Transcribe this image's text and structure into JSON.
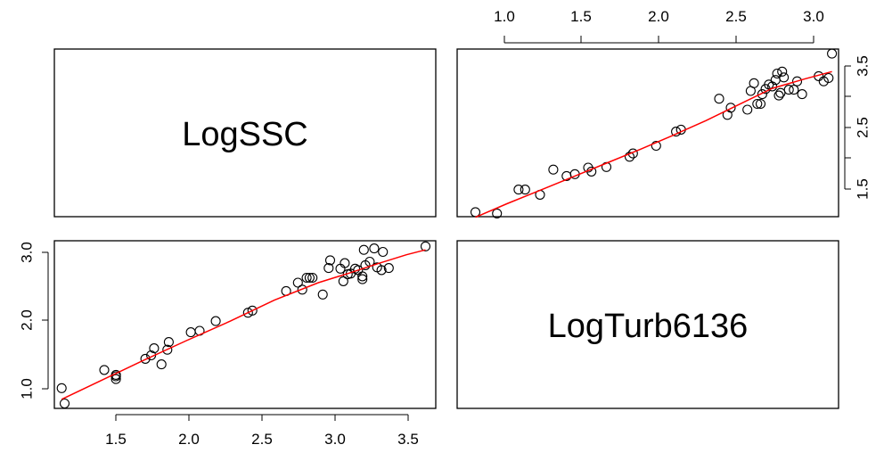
{
  "chart_data": {
    "type": "scatter",
    "layout": "scatterplot-matrix",
    "grid": false,
    "variables": [
      "LogSSC",
      "LogTurb6136"
    ],
    "axes": {
      "top_ticks": [
        "1.0",
        "1.5",
        "2.0",
        "2.5",
        "3.0"
      ],
      "right_ticks": [
        "1.5",
        "2.5",
        "3.5"
      ],
      "left_ticks": [
        "1.0",
        "2.0",
        "3.0"
      ],
      "bottom_ticks": [
        "1.5",
        "2.0",
        "2.5",
        "3.0",
        "3.5"
      ]
    },
    "panels": [
      {
        "position": "top-right",
        "x_variable": "LogTurb6136",
        "y_variable": "LogSSC",
        "xlim": [
          0.8,
          3.1
        ],
        "ylim": [
          1.1,
          3.7
        ],
        "smoother_color": "#ff0000",
        "point_color": "#000000",
        "points": [
          [
            0.91,
            1.17
          ],
          [
            1.04,
            1.15
          ],
          [
            1.17,
            1.52
          ],
          [
            1.21,
            1.52
          ],
          [
            1.3,
            1.44
          ],
          [
            1.38,
            1.83
          ],
          [
            1.46,
            1.73
          ],
          [
            1.51,
            1.76
          ],
          [
            1.59,
            1.86
          ],
          [
            1.61,
            1.8
          ],
          [
            1.7,
            1.87
          ],
          [
            1.84,
            2.03
          ],
          [
            1.86,
            2.08
          ],
          [
            2.0,
            2.2
          ],
          [
            2.12,
            2.42
          ],
          [
            2.15,
            2.45
          ],
          [
            2.38,
            2.93
          ],
          [
            2.43,
            2.68
          ],
          [
            2.45,
            2.79
          ],
          [
            2.55,
            2.76
          ],
          [
            2.57,
            3.05
          ],
          [
            2.59,
            3.17
          ],
          [
            2.61,
            2.85
          ],
          [
            2.63,
            2.85
          ],
          [
            2.64,
            3.0
          ],
          [
            2.66,
            3.08
          ],
          [
            2.68,
            3.15
          ],
          [
            2.7,
            3.12
          ],
          [
            2.72,
            3.22
          ],
          [
            2.73,
            3.32
          ],
          [
            2.74,
            2.98
          ],
          [
            2.75,
            3.02
          ],
          [
            2.76,
            3.35
          ],
          [
            2.77,
            3.26
          ],
          [
            2.8,
            3.07
          ],
          [
            2.83,
            3.07
          ],
          [
            2.85,
            3.2
          ],
          [
            2.88,
            3.0
          ],
          [
            2.98,
            3.28
          ],
          [
            3.01,
            3.2
          ],
          [
            3.04,
            3.25
          ],
          [
            3.06,
            3.63
          ]
        ],
        "smoother": [
          [
            0.91,
            1.09
          ],
          [
            1.1,
            1.3
          ],
          [
            1.3,
            1.51
          ],
          [
            1.5,
            1.72
          ],
          [
            1.7,
            1.93
          ],
          [
            1.9,
            2.14
          ],
          [
            2.1,
            2.36
          ],
          [
            2.3,
            2.59
          ],
          [
            2.5,
            2.84
          ],
          [
            2.7,
            3.09
          ],
          [
            2.9,
            3.24
          ],
          [
            3.06,
            3.35
          ]
        ]
      },
      {
        "position": "bottom-left",
        "x_variable": "LogSSC",
        "y_variable": "LogTurb6136",
        "xlim": [
          1.1,
          3.7
        ],
        "ylim": [
          0.75,
          3.15
        ],
        "smoother_color": "#ff0000",
        "point_color": "#000000",
        "points": [
          [
            1.15,
            1.04
          ],
          [
            1.17,
            0.82
          ],
          [
            1.44,
            1.3
          ],
          [
            1.52,
            1.17
          ],
          [
            1.52,
            1.21
          ],
          [
            1.52,
            1.23
          ],
          [
            1.72,
            1.46
          ],
          [
            1.76,
            1.51
          ],
          [
            1.78,
            1.61
          ],
          [
            1.83,
            1.38
          ],
          [
            1.87,
            1.59
          ],
          [
            1.88,
            1.7
          ],
          [
            2.03,
            1.84
          ],
          [
            2.09,
            1.86
          ],
          [
            2.2,
            2.0
          ],
          [
            2.42,
            2.12
          ],
          [
            2.45,
            2.15
          ],
          [
            2.68,
            2.43
          ],
          [
            2.76,
            2.55
          ],
          [
            2.79,
            2.45
          ],
          [
            2.82,
            2.62
          ],
          [
            2.84,
            2.62
          ],
          [
            2.86,
            2.62
          ],
          [
            2.93,
            2.38
          ],
          [
            2.97,
            2.76
          ],
          [
            2.98,
            2.87
          ],
          [
            3.05,
            2.75
          ],
          [
            3.07,
            2.57
          ],
          [
            3.08,
            2.83
          ],
          [
            3.1,
            2.67
          ],
          [
            3.12,
            2.68
          ],
          [
            3.15,
            2.75
          ],
          [
            3.17,
            2.73
          ],
          [
            3.2,
            2.6
          ],
          [
            3.2,
            2.64
          ],
          [
            3.21,
            3.02
          ],
          [
            3.22,
            2.8
          ],
          [
            3.25,
            2.85
          ],
          [
            3.28,
            3.04
          ],
          [
            3.3,
            2.77
          ],
          [
            3.33,
            2.73
          ],
          [
            3.34,
            2.99
          ],
          [
            3.38,
            2.76
          ],
          [
            3.63,
            3.07
          ]
        ],
        "smoother": [
          [
            1.15,
            0.88
          ],
          [
            1.4,
            1.13
          ],
          [
            1.7,
            1.43
          ],
          [
            2.0,
            1.72
          ],
          [
            2.3,
            2.0
          ],
          [
            2.6,
            2.3
          ],
          [
            2.9,
            2.55
          ],
          [
            3.1,
            2.68
          ],
          [
            3.3,
            2.82
          ],
          [
            3.5,
            2.95
          ],
          [
            3.63,
            3.02
          ]
        ]
      }
    ]
  }
}
